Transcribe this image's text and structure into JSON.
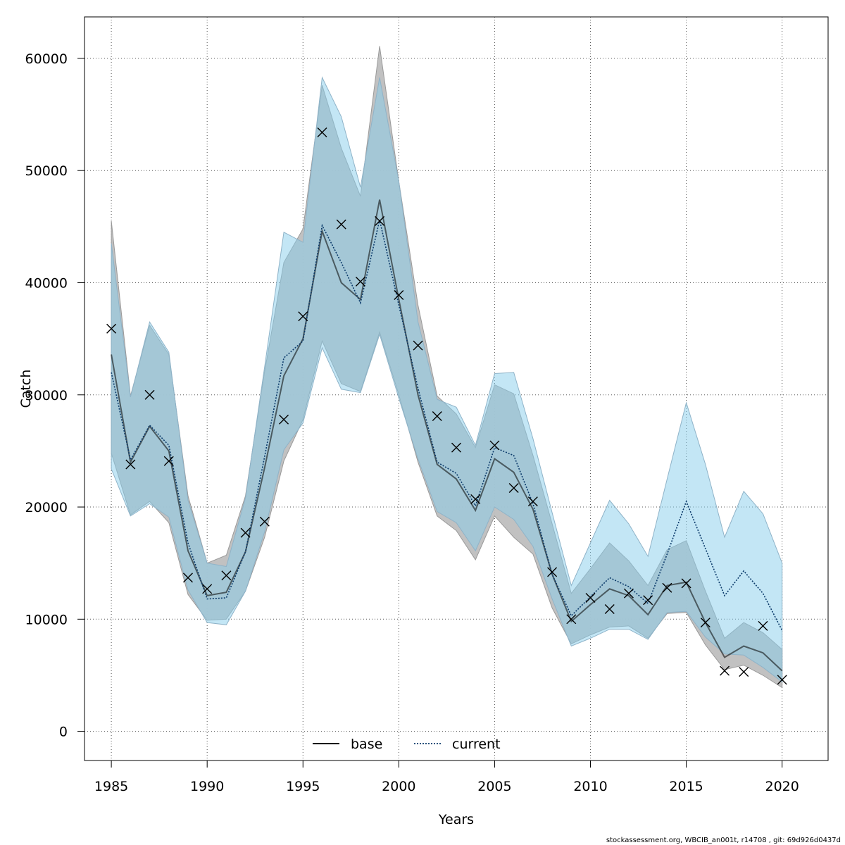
{
  "chart_data": {
    "type": "line",
    "xlabel": "Years",
    "ylabel": "Catch",
    "xlim": [
      1983.6,
      2022.4
    ],
    "ylim": [
      -2600,
      63700
    ],
    "x_ticks": [
      1985,
      1990,
      1995,
      2000,
      2005,
      2010,
      2015,
      2020
    ],
    "y_ticks": [
      0,
      10000,
      20000,
      30000,
      40000,
      50000,
      60000
    ],
    "grid": true,
    "legend_position": "bottom",
    "colors": {
      "base_band": "#bebebe",
      "current_band": "#87ceeb",
      "base_line": "#000000",
      "current_line": "#0b3a6a",
      "observed": "#000000"
    },
    "x": [
      1985,
      1986,
      1987,
      1988,
      1989,
      1990,
      1991,
      1992,
      1993,
      1994,
      1995,
      1996,
      1997,
      1998,
      1999,
      2000,
      2001,
      2002,
      2003,
      2004,
      2005,
      2006,
      2007,
      2008,
      2009,
      2010,
      2011,
      2012,
      2013,
      2014,
      2015,
      2016,
      2017,
      2018,
      2019,
      2020
    ],
    "series": [
      {
        "name": "base",
        "style": "solid",
        "values": [
          33600,
          24000,
          27200,
          25000,
          16100,
          12100,
          12400,
          16000,
          23500,
          31700,
          35000,
          44600,
          40000,
          38500,
          47400,
          38500,
          30000,
          23800,
          22500,
          19700,
          24300,
          23100,
          19800,
          14000,
          9800,
          11300,
          12700,
          12100,
          10400,
          13000,
          13300,
          9700,
          6600,
          7600,
          7000,
          5400
        ],
        "lower": [
          24800,
          19300,
          20500,
          18600,
          12200,
          9900,
          10000,
          12500,
          17300,
          24100,
          27800,
          34800,
          31000,
          30300,
          35600,
          30000,
          24000,
          19200,
          17900,
          15300,
          19200,
          17300,
          15800,
          11000,
          7800,
          8600,
          9300,
          9400,
          8300,
          10500,
          10600,
          7700,
          5500,
          5900,
          5000,
          3900
        ],
        "upper": [
          45500,
          29900,
          36200,
          33600,
          21000,
          15000,
          15700,
          21000,
          32100,
          41800,
          44800,
          57600,
          52000,
          47700,
          61100,
          49000,
          38000,
          29900,
          28300,
          25300,
          30900,
          30100,
          24600,
          18500,
          12300,
          14500,
          16800,
          15200,
          13000,
          16200,
          17000,
          12500,
          8300,
          9700,
          8800,
          7300
        ]
      },
      {
        "name": "current",
        "style": "dotted",
        "values": [
          32000,
          24200,
          27300,
          25500,
          16800,
          11800,
          11900,
          16000,
          24500,
          33300,
          34800,
          45100,
          41800,
          38200,
          45600,
          38000,
          30600,
          24000,
          23000,
          20100,
          25300,
          24600,
          20300,
          14000,
          10300,
          12000,
          13700,
          12900,
          11400,
          15800,
          20500,
          16300,
          12100,
          14300,
          12300,
          9000
        ],
        "lower": [
          23400,
          19200,
          20300,
          19100,
          12600,
          9700,
          9500,
          12500,
          17800,
          25100,
          27500,
          34200,
          30500,
          30200,
          35400,
          29700,
          24300,
          19600,
          18600,
          16100,
          20000,
          18900,
          16500,
          11800,
          7600,
          8300,
          9100,
          9100,
          8200,
          10600,
          10700,
          8400,
          6900,
          6800,
          5700,
          4400
        ],
        "upper": [
          43500,
          29800,
          36500,
          33800,
          20600,
          15000,
          14700,
          20800,
          32500,
          44500,
          43600,
          58300,
          54800,
          48500,
          58300,
          49000,
          36500,
          29600,
          28900,
          25500,
          31900,
          32000,
          26100,
          19500,
          13000,
          16800,
          20600,
          18500,
          15600,
          22500,
          29300,
          23800,
          17300,
          21400,
          19400,
          15000
        ]
      },
      {
        "name": "observed",
        "style": "x-markers",
        "values": [
          35900,
          23800,
          30000,
          24100,
          13700,
          12700,
          13900,
          17700,
          18700,
          27800,
          37000,
          53400,
          45200,
          40100,
          45500,
          38900,
          34400,
          28100,
          25300,
          20700,
          25500,
          21700,
          20500,
          14200,
          10000,
          11900,
          10900,
          12300,
          11700,
          12800,
          13200,
          9700,
          5400,
          5300,
          9400,
          4600
        ]
      }
    ],
    "credit": "stockassessment.org, WBCIB_an001t, r14708 , git: 69d926d0437d"
  }
}
